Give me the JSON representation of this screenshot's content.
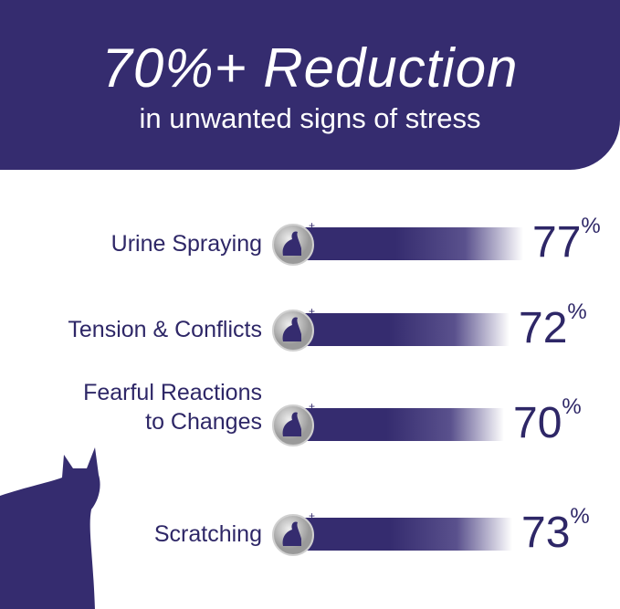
{
  "header": {
    "title": "70%+ Reduction",
    "subtitle": "in unwanted signs of stress"
  },
  "colors": {
    "primary": "#352c6f",
    "bar_fade": "#ffffff"
  },
  "chart_data": {
    "type": "bar",
    "orientation": "horizontal",
    "categories": [
      "Urine Spraying",
      "Tension & Conflicts",
      "Fearful Reactions to Changes",
      "Scratching"
    ],
    "category_lines": [
      [
        "Urine Spraying"
      ],
      [
        "Tension & Conflicts"
      ],
      [
        "Fearful Reactions",
        "to Changes"
      ],
      [
        "Scratching"
      ]
    ],
    "values": [
      77,
      72,
      70,
      73
    ],
    "value_labels": [
      "77",
      "72",
      "70",
      "73"
    ],
    "unit": "%",
    "icons": [
      "cat-spraying-icon",
      "cats-fighting-icon",
      "cat-hiding-icon",
      "cat-scratching-icon"
    ]
  }
}
